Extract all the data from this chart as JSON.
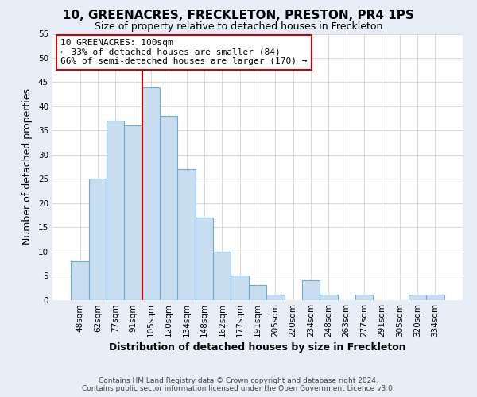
{
  "title": "10, GREENACRES, FRECKLETON, PRESTON, PR4 1PS",
  "subtitle": "Size of property relative to detached houses in Freckleton",
  "xlabel": "Distribution of detached houses by size in Freckleton",
  "ylabel": "Number of detached properties",
  "bar_labels": [
    "48sqm",
    "62sqm",
    "77sqm",
    "91sqm",
    "105sqm",
    "120sqm",
    "134sqm",
    "148sqm",
    "162sqm",
    "177sqm",
    "191sqm",
    "205sqm",
    "220sqm",
    "234sqm",
    "248sqm",
    "263sqm",
    "277sqm",
    "291sqm",
    "305sqm",
    "320sqm",
    "334sqm"
  ],
  "bar_values": [
    8,
    25,
    37,
    36,
    44,
    38,
    27,
    17,
    10,
    5,
    3,
    1,
    0,
    4,
    1,
    0,
    1,
    0,
    0,
    1,
    1
  ],
  "bar_color": "#c8ddf0",
  "bar_edge_color": "#6aaed6",
  "ylim": [
    0,
    55
  ],
  "yticks": [
    0,
    5,
    10,
    15,
    20,
    25,
    30,
    35,
    40,
    45,
    50,
    55
  ],
  "vline_x_index": 4,
  "vline_color": "#cc0000",
  "annotation_title": "10 GREENACRES: 100sqm",
  "annotation_line1": "← 33% of detached houses are smaller (84)",
  "annotation_line2": "66% of semi-detached houses are larger (170) →",
  "annotation_box_color": "#ffffff",
  "annotation_box_edge": "#cc0000",
  "footer_line1": "Contains HM Land Registry data © Crown copyright and database right 2024.",
  "footer_line2": "Contains public sector information licensed under the Open Government Licence v3.0.",
  "background_color": "#e8eef8",
  "plot_background_color": "#ffffff",
  "title_fontsize": 11,
  "subtitle_fontsize": 9,
  "axis_label_fontsize": 9,
  "tick_fontsize": 7.5,
  "footer_fontsize": 6.5,
  "annotation_fontsize": 8
}
